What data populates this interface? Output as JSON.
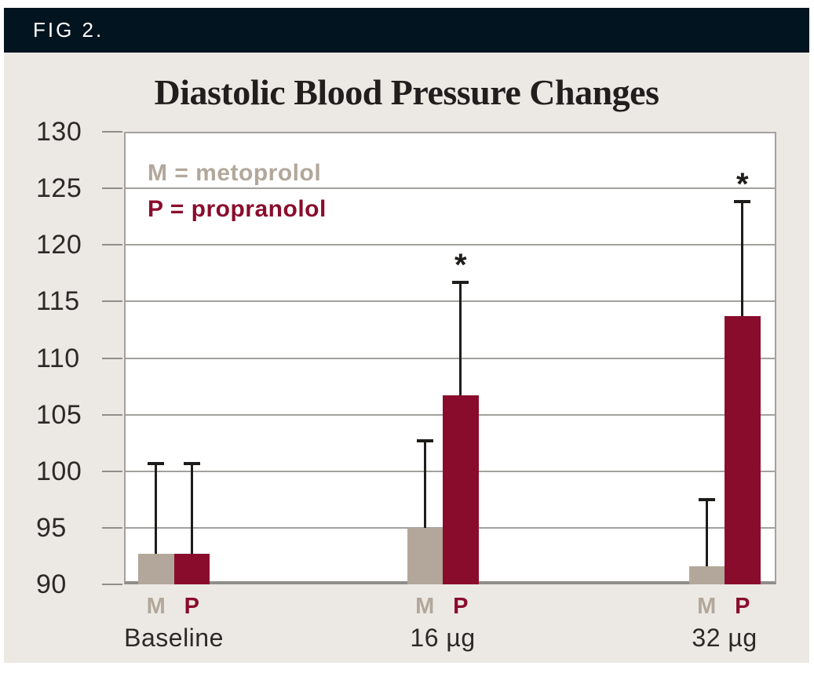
{
  "figure": {
    "label": "FIG 2."
  },
  "colors": {
    "header_bg": "#02141f",
    "header_text": "#ffffff",
    "panel_bg": "#ece9e4",
    "plot_bg": "#ffffff",
    "grid": "#a3a19e",
    "axis": "#8f8d8a",
    "text": "#2b2a28",
    "error_bar": "#1f1d1b",
    "metoprolol": "#b2a79a",
    "propranolol": "#8a0c2c"
  },
  "chart_data": {
    "type": "bar",
    "title": "Diastolic Blood Pressure Changes",
    "categories": [
      "Baseline",
      "16 µg",
      "32 µg"
    ],
    "series": [
      {
        "name": "M",
        "drug": "metoprolol",
        "color": "#b2a79a",
        "values": [
          92.7,
          95.0,
          91.6
        ],
        "error_top": [
          100.7,
          102.7,
          97.5
        ],
        "significant": [
          false,
          false,
          false
        ]
      },
      {
        "name": "P",
        "drug": "propranolol",
        "color": "#8a0c2c",
        "values": [
          92.7,
          106.7,
          113.7
        ],
        "error_top": [
          100.7,
          116.7,
          123.8
        ],
        "significant": [
          false,
          true,
          true
        ]
      }
    ],
    "ylim": [
      90,
      130
    ],
    "yticks": [
      90,
      95,
      100,
      105,
      110,
      115,
      120,
      125,
      130
    ],
    "grid": true,
    "legend_position": "top-left-inside",
    "legend": [
      {
        "text": "M = metoprolol",
        "color": "#b2a79a"
      },
      {
        "text": "P = propranolol",
        "color": "#8a0c2c"
      }
    ],
    "sig_marker": "*"
  }
}
